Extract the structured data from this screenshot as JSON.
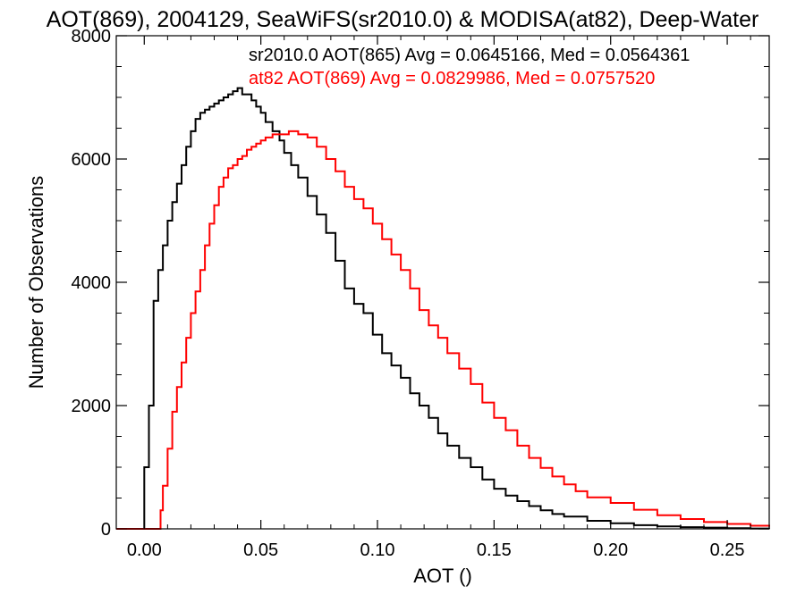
{
  "chart_data": {
    "type": "line",
    "title": "AOT(869), 2004129, SeaWiFS(sr2010.0) & MODISA(at82), Deep-Water",
    "xlabel": "AOT ()",
    "ylabel": "Number of Observations",
    "xlim": [
      -0.012,
      0.268
    ],
    "ylim": [
      0,
      8000
    ],
    "x_ticks": [
      0.0,
      0.05,
      0.1,
      0.15,
      0.2,
      0.25
    ],
    "x_tick_labels": [
      "0.00",
      "0.05",
      "0.10",
      "0.15",
      "0.20",
      "0.25"
    ],
    "y_ticks": [
      0,
      2000,
      4000,
      6000,
      8000
    ],
    "y_tick_labels": [
      "0",
      "2000",
      "4000",
      "6000",
      "8000"
    ],
    "grid": false,
    "step": true,
    "annotations": [
      {
        "text": "sr2010.0 AOT(865) Avg = 0.0645166, Med = 0.0564361",
        "color": "#000000"
      },
      {
        "text": "at82 AOT(869) Avg = 0.0829986, Med = 0.0757520",
        "color": "#ff0000"
      }
    ],
    "series": [
      {
        "color": "#000000",
        "x": [
          -0.012,
          -0.001,
          0.0,
          0.002,
          0.004,
          0.006,
          0.008,
          0.01,
          0.012,
          0.014,
          0.016,
          0.018,
          0.02,
          0.022,
          0.024,
          0.026,
          0.028,
          0.03,
          0.032,
          0.034,
          0.036,
          0.038,
          0.04,
          0.042,
          0.044,
          0.046,
          0.048,
          0.05,
          0.052,
          0.055,
          0.058,
          0.06,
          0.063,
          0.066,
          0.07,
          0.074,
          0.078,
          0.082,
          0.086,
          0.09,
          0.094,
          0.098,
          0.102,
          0.106,
          0.11,
          0.114,
          0.118,
          0.122,
          0.126,
          0.13,
          0.135,
          0.14,
          0.145,
          0.15,
          0.155,
          0.16,
          0.165,
          0.17,
          0.175,
          0.18,
          0.19,
          0.2,
          0.21,
          0.22,
          0.23,
          0.24,
          0.25,
          0.26,
          0.268
        ],
        "y": [
          0,
          0,
          1000,
          2000,
          3700,
          4200,
          4600,
          5000,
          5300,
          5600,
          5900,
          6200,
          6450,
          6650,
          6750,
          6800,
          6850,
          6900,
          6950,
          7000,
          7050,
          7100,
          7150,
          7050,
          7050,
          6950,
          6850,
          6750,
          6600,
          6450,
          6300,
          6100,
          5900,
          5700,
          5400,
          5100,
          4800,
          4350,
          3900,
          3650,
          3500,
          3150,
          2850,
          2650,
          2450,
          2200,
          2000,
          1800,
          1550,
          1350,
          1150,
          1000,
          800,
          650,
          540,
          450,
          370,
          300,
          240,
          200,
          130,
          90,
          60,
          40,
          28,
          20,
          12,
          6,
          4
        ]
      },
      {
        "color": "#ff0000",
        "x": [
          -0.012,
          0.006,
          0.007,
          0.008,
          0.01,
          0.012,
          0.014,
          0.016,
          0.018,
          0.02,
          0.022,
          0.024,
          0.026,
          0.028,
          0.03,
          0.032,
          0.034,
          0.036,
          0.038,
          0.04,
          0.042,
          0.044,
          0.046,
          0.048,
          0.05,
          0.052,
          0.055,
          0.058,
          0.062,
          0.066,
          0.07,
          0.074,
          0.078,
          0.082,
          0.086,
          0.09,
          0.094,
          0.098,
          0.102,
          0.106,
          0.11,
          0.114,
          0.118,
          0.122,
          0.126,
          0.13,
          0.135,
          0.14,
          0.145,
          0.15,
          0.155,
          0.16,
          0.165,
          0.17,
          0.175,
          0.18,
          0.185,
          0.19,
          0.2,
          0.21,
          0.22,
          0.23,
          0.24,
          0.25,
          0.26,
          0.268
        ],
        "y": [
          0,
          0,
          300,
          700,
          1300,
          1900,
          2300,
          2700,
          3100,
          3500,
          3850,
          4200,
          4600,
          4950,
          5250,
          5550,
          5700,
          5850,
          5900,
          6000,
          6050,
          6150,
          6200,
          6250,
          6300,
          6350,
          6400,
          6400,
          6450,
          6400,
          6350,
          6200,
          6000,
          5800,
          5550,
          5350,
          5200,
          4950,
          4700,
          4450,
          4200,
          3900,
          3550,
          3300,
          3100,
          2850,
          2600,
          2350,
          2050,
          1800,
          1600,
          1350,
          1150,
          990,
          850,
          720,
          610,
          510,
          420,
          310,
          220,
          160,
          110,
          80,
          50,
          35
        ]
      }
    ]
  }
}
